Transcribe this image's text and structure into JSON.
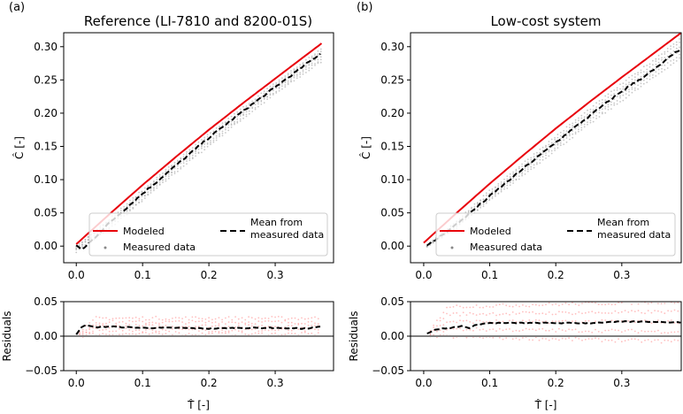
{
  "chart_data": [
    {
      "panel_label": "(a)",
      "type": "line",
      "title": "Reference (LI-7810 and 8200-01S)",
      "xlabel": "",
      "ylabel": "Ĉ [-]",
      "xlim": [
        -0.019,
        0.388
      ],
      "ylim": [
        -0.025,
        0.321
      ],
      "xticks": [
        0.0,
        0.1,
        0.2,
        0.3
      ],
      "xtick_labels": [
        "0.0",
        "0.1",
        "0.2",
        "0.3"
      ],
      "yticks": [
        0.0,
        0.05,
        0.1,
        0.15,
        0.2,
        0.25,
        0.3
      ],
      "ytick_labels": [
        "0.00",
        "0.05",
        "0.10",
        "0.15",
        "0.20",
        "0.25",
        "0.30"
      ],
      "grid": false,
      "legend": {
        "placement": "lower-right",
        "entries": [
          {
            "label": "Modeled",
            "style": "solid",
            "color": "#e8000b"
          },
          {
            "label": "Mean from\nmeasured data",
            "style": "dashed",
            "color": "#000000"
          },
          {
            "label": "Measured data",
            "style": "dots",
            "color": "#999999"
          }
        ]
      },
      "series": [
        {
          "name": "Modeled",
          "color": "#e8000b",
          "x": [
            0.0,
            0.05,
            0.1,
            0.15,
            0.2,
            0.25,
            0.3,
            0.37
          ],
          "y": [
            0.003,
            0.048,
            0.092,
            0.134,
            0.175,
            0.214,
            0.252,
            0.305
          ]
        },
        {
          "name": "Mean from measured data",
          "color": "#000000",
          "x": [
            0.0,
            0.01,
            0.05,
            0.1,
            0.15,
            0.2,
            0.25,
            0.3,
            0.37
          ],
          "y": [
            0.0,
            -0.005,
            0.035,
            0.079,
            0.121,
            0.163,
            0.202,
            0.239,
            0.291
          ]
        },
        {
          "name": "Measured data (upper)",
          "color": "#999999",
          "x": [
            0.0,
            0.05,
            0.1,
            0.15,
            0.2,
            0.25,
            0.3,
            0.37
          ],
          "y": [
            0.0,
            0.041,
            0.084,
            0.127,
            0.168,
            0.207,
            0.245,
            0.297
          ]
        },
        {
          "name": "Measured data (lower)",
          "color": "#999999",
          "x": [
            0.0,
            0.05,
            0.1,
            0.15,
            0.2,
            0.25,
            0.3,
            0.37
          ],
          "y": [
            -0.008,
            0.026,
            0.069,
            0.111,
            0.151,
            0.191,
            0.229,
            0.278
          ]
        }
      ],
      "residuals": {
        "ylabel": "Residuals",
        "xlabel": "T̂ [-]",
        "ylim": [
          -0.05,
          0.05
        ],
        "yticks": [
          -0.05,
          0.0,
          0.05
        ],
        "ytick_labels": [
          "−0.05",
          "0.00",
          "0.05"
        ],
        "zero_line_color": "#808080",
        "mean": {
          "x": [
            0.0,
            0.01,
            0.03,
            0.05,
            0.1,
            0.15,
            0.2,
            0.25,
            0.3,
            0.35,
            0.37
          ],
          "y": [
            0.003,
            0.016,
            0.013,
            0.014,
            0.012,
            0.012,
            0.011,
            0.012,
            0.012,
            0.011,
            0.014
          ]
        },
        "scatter_band": {
          "color": "#ff8080",
          "lower": 0.003,
          "upper": 0.026
        }
      }
    },
    {
      "panel_label": "(b)",
      "type": "line",
      "title": "Low-cost system",
      "xlabel": "",
      "ylabel": "Ĉ [-]",
      "xlim": [
        -0.02,
        0.39
      ],
      "ylim": [
        -0.025,
        0.321
      ],
      "xticks": [
        0.0,
        0.1,
        0.2,
        0.3
      ],
      "xtick_labels": [
        "0.0",
        "0.1",
        "0.2",
        "0.3"
      ],
      "yticks": [
        0.0,
        0.05,
        0.1,
        0.15,
        0.2,
        0.25,
        0.3
      ],
      "ytick_labels": [
        "0.00",
        "0.05",
        "0.10",
        "0.15",
        "0.20",
        "0.25",
        "0.30"
      ],
      "grid": false,
      "legend": {
        "placement": "lower-right",
        "entries": [
          {
            "label": "Modeled",
            "style": "solid",
            "color": "#e8000b"
          },
          {
            "label": "Mean from\nmeasured data",
            "style": "dashed",
            "color": "#000000"
          },
          {
            "label": "Measured data",
            "style": "dots",
            "color": "#999999"
          }
        ]
      },
      "series": [
        {
          "name": "Modeled",
          "color": "#e8000b",
          "x": [
            0.0,
            0.05,
            0.1,
            0.15,
            0.2,
            0.25,
            0.3,
            0.39
          ],
          "y": [
            0.005,
            0.05,
            0.094,
            0.136,
            0.177,
            0.216,
            0.254,
            0.321
          ]
        },
        {
          "name": "Mean from measured data",
          "color": "#000000",
          "x": [
            0.005,
            0.05,
            0.1,
            0.15,
            0.2,
            0.25,
            0.3,
            0.35,
            0.39
          ],
          "y": [
            0.0,
            0.033,
            0.075,
            0.116,
            0.156,
            0.195,
            0.233,
            0.266,
            0.298
          ]
        },
        {
          "name": "Measured data (upper)",
          "color": "#999999",
          "x": [
            0.005,
            0.05,
            0.1,
            0.15,
            0.2,
            0.25,
            0.3,
            0.35,
            0.39
          ],
          "y": [
            0.0,
            0.038,
            0.083,
            0.124,
            0.165,
            0.205,
            0.244,
            0.281,
            0.314
          ]
        },
        {
          "name": "Measured data (lower)",
          "color": "#999999",
          "x": [
            0.005,
            0.05,
            0.1,
            0.15,
            0.2,
            0.25,
            0.3,
            0.35,
            0.39
          ],
          "y": [
            0.0,
            0.028,
            0.068,
            0.106,
            0.145,
            0.183,
            0.219,
            0.255,
            0.284
          ]
        }
      ],
      "residuals": {
        "ylabel": "Residuals",
        "xlabel": "T̂ [-]",
        "ylim": [
          -0.05,
          0.05
        ],
        "yticks": [
          -0.05,
          0.0,
          0.05
        ],
        "ytick_labels": [
          "−0.05",
          "0.00",
          "0.05"
        ],
        "zero_line_color": "#808080",
        "mean": {
          "x": [
            0.005,
            0.02,
            0.04,
            0.06,
            0.07,
            0.08,
            0.1,
            0.15,
            0.2,
            0.25,
            0.3,
            0.35,
            0.39
          ],
          "y": [
            0.004,
            0.01,
            0.012,
            0.015,
            0.011,
            0.017,
            0.019,
            0.019,
            0.019,
            0.019,
            0.021,
            0.021,
            0.02
          ]
        },
        "scatter_band": {
          "color": "#ff8080",
          "lower": 0.0,
          "upper": 0.042
        }
      }
    }
  ]
}
